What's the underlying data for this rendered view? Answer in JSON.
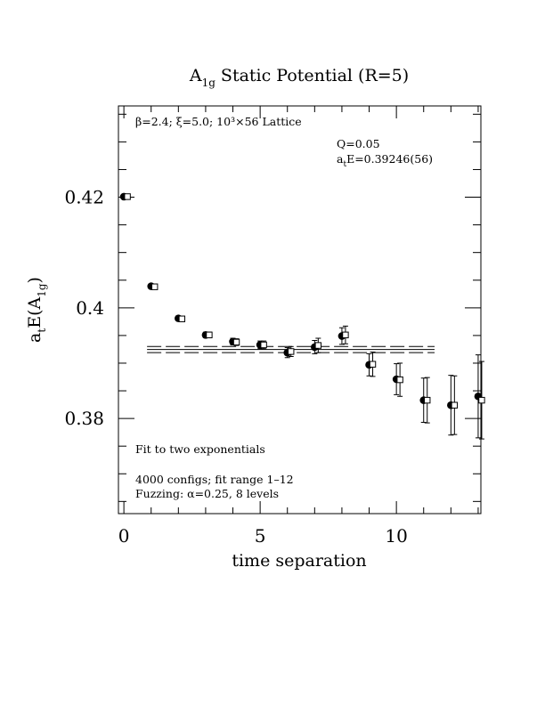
{
  "chart_data": {
    "type": "scatter",
    "title": {
      "main": "A",
      "sub": "1g",
      "rest": " Static Potential (R=5)"
    },
    "xlabel": "time separation",
    "ylabel": {
      "main": "a",
      "sub1": "t",
      "mid": "E(A",
      "sub2": "1g",
      "end": ")"
    },
    "xlim": [
      -0.2,
      13.1
    ],
    "ylim": [
      0.3628,
      0.4365
    ],
    "x_ticks": [
      0,
      5,
      10
    ],
    "x_tick_labels": [
      "0",
      "5",
      "10"
    ],
    "y_ticks": [
      0.38,
      0.4,
      0.42
    ],
    "y_tick_labels": [
      "0.38",
      "0.4",
      "0.42"
    ],
    "annotations": {
      "lattice": "β=2.4; ξ=5.0; 10³×56 Lattice",
      "q": "Q=0.05",
      "fit_energy": {
        "main": "a",
        "sub": "t",
        "rest": "E=0.39246(56)"
      },
      "fit_type": "Fit to two exponentials",
      "configs": "4000 configs; fit range 1–12",
      "fuzzing": "Fuzzing: α=0.25, 8 levels"
    },
    "fit": {
      "value": 0.39246,
      "error": 0.00056,
      "x_range": [
        0.85,
        11.4
      ]
    },
    "series": [
      {
        "marker": "filled-circle",
        "points": [
          {
            "x": 0,
            "y": 0.4201,
            "err": 0.0002
          },
          {
            "x": 1,
            "y": 0.4039,
            "err": 0.0003
          },
          {
            "x": 2,
            "y": 0.3981,
            "err": 0.0004
          },
          {
            "x": 3,
            "y": 0.3951,
            "err": 0.0005
          },
          {
            "x": 4,
            "y": 0.3939,
            "err": 0.0006
          },
          {
            "x": 5,
            "y": 0.3933,
            "err": 0.0007
          },
          {
            "x": 6,
            "y": 0.3919,
            "err": 0.0009
          },
          {
            "x": 7,
            "y": 0.3929,
            "err": 0.0012
          },
          {
            "x": 8,
            "y": 0.3949,
            "err": 0.0015
          },
          {
            "x": 9,
            "y": 0.3897,
            "err": 0.002
          },
          {
            "x": 10,
            "y": 0.3871,
            "err": 0.0028
          },
          {
            "x": 11,
            "y": 0.3833,
            "err": 0.004
          },
          {
            "x": 12,
            "y": 0.3824,
            "err": 0.0054
          },
          {
            "x": 13,
            "y": 0.384,
            "err": 0.0075
          }
        ]
      },
      {
        "marker": "open-square",
        "points": [
          {
            "x": 0,
            "y": 0.4201,
            "err": 0.0002
          },
          {
            "x": 1,
            "y": 0.4038,
            "err": 0.0003
          },
          {
            "x": 2,
            "y": 0.398,
            "err": 0.0004
          },
          {
            "x": 3,
            "y": 0.3951,
            "err": 0.0005
          },
          {
            "x": 4,
            "y": 0.3938,
            "err": 0.0006
          },
          {
            "x": 5,
            "y": 0.3933,
            "err": 0.0007
          },
          {
            "x": 6,
            "y": 0.3921,
            "err": 0.0009
          },
          {
            "x": 7,
            "y": 0.3932,
            "err": 0.0013
          },
          {
            "x": 8,
            "y": 0.3951,
            "err": 0.0016
          },
          {
            "x": 9,
            "y": 0.3898,
            "err": 0.0022
          },
          {
            "x": 10,
            "y": 0.387,
            "err": 0.003
          },
          {
            "x": 11,
            "y": 0.3833,
            "err": 0.0041
          },
          {
            "x": 12,
            "y": 0.3824,
            "err": 0.0053
          },
          {
            "x": 13,
            "y": 0.3833,
            "err": 0.007
          }
        ]
      }
    ]
  }
}
